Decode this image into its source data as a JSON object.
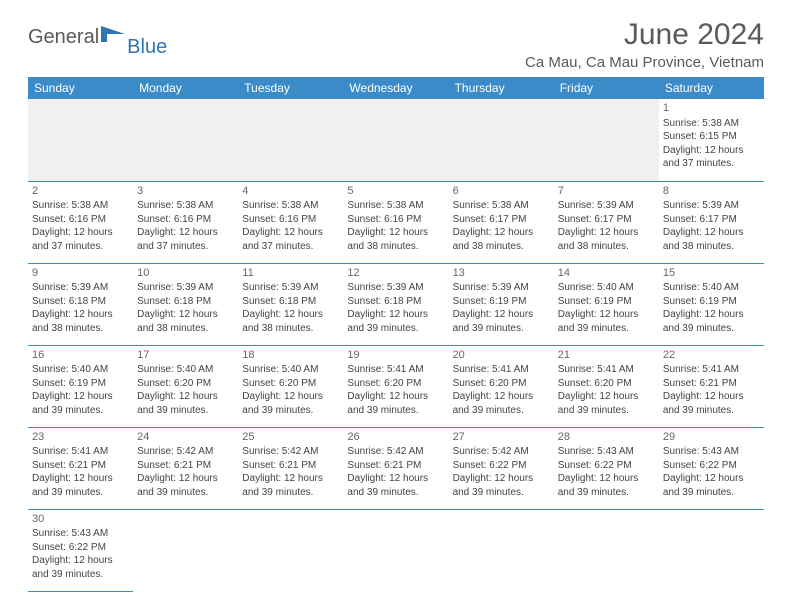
{
  "brand": {
    "general": "General",
    "blue": "Blue"
  },
  "title": "June 2024",
  "location": "Ca Mau, Ca Mau Province, Vietnam",
  "colors": {
    "header_bg": "#3b8bc9",
    "header_text": "#ffffff",
    "grid_line": "#3b8bc9",
    "blank_bg": "#f0f0f0",
    "text": "#444444",
    "title_text": "#5a5a5a",
    "logo_blue": "#2e75b6"
  },
  "weekdays": [
    "Sunday",
    "Monday",
    "Tuesday",
    "Wednesday",
    "Thursday",
    "Friday",
    "Saturday"
  ],
  "weeks": [
    [
      null,
      null,
      null,
      null,
      null,
      null,
      {
        "n": "1",
        "sr": "Sunrise: 5:38 AM",
        "ss": "Sunset: 6:15 PM",
        "d1": "Daylight: 12 hours",
        "d2": "and 37 minutes."
      }
    ],
    [
      {
        "n": "2",
        "sr": "Sunrise: 5:38 AM",
        "ss": "Sunset: 6:16 PM",
        "d1": "Daylight: 12 hours",
        "d2": "and 37 minutes."
      },
      {
        "n": "3",
        "sr": "Sunrise: 5:38 AM",
        "ss": "Sunset: 6:16 PM",
        "d1": "Daylight: 12 hours",
        "d2": "and 37 minutes."
      },
      {
        "n": "4",
        "sr": "Sunrise: 5:38 AM",
        "ss": "Sunset: 6:16 PM",
        "d1": "Daylight: 12 hours",
        "d2": "and 37 minutes."
      },
      {
        "n": "5",
        "sr": "Sunrise: 5:38 AM",
        "ss": "Sunset: 6:16 PM",
        "d1": "Daylight: 12 hours",
        "d2": "and 38 minutes."
      },
      {
        "n": "6",
        "sr": "Sunrise: 5:38 AM",
        "ss": "Sunset: 6:17 PM",
        "d1": "Daylight: 12 hours",
        "d2": "and 38 minutes."
      },
      {
        "n": "7",
        "sr": "Sunrise: 5:39 AM",
        "ss": "Sunset: 6:17 PM",
        "d1": "Daylight: 12 hours",
        "d2": "and 38 minutes."
      },
      {
        "n": "8",
        "sr": "Sunrise: 5:39 AM",
        "ss": "Sunset: 6:17 PM",
        "d1": "Daylight: 12 hours",
        "d2": "and 38 minutes."
      }
    ],
    [
      {
        "n": "9",
        "sr": "Sunrise: 5:39 AM",
        "ss": "Sunset: 6:18 PM",
        "d1": "Daylight: 12 hours",
        "d2": "and 38 minutes."
      },
      {
        "n": "10",
        "sr": "Sunrise: 5:39 AM",
        "ss": "Sunset: 6:18 PM",
        "d1": "Daylight: 12 hours",
        "d2": "and 38 minutes."
      },
      {
        "n": "11",
        "sr": "Sunrise: 5:39 AM",
        "ss": "Sunset: 6:18 PM",
        "d1": "Daylight: 12 hours",
        "d2": "and 38 minutes."
      },
      {
        "n": "12",
        "sr": "Sunrise: 5:39 AM",
        "ss": "Sunset: 6:18 PM",
        "d1": "Daylight: 12 hours",
        "d2": "and 39 minutes."
      },
      {
        "n": "13",
        "sr": "Sunrise: 5:39 AM",
        "ss": "Sunset: 6:19 PM",
        "d1": "Daylight: 12 hours",
        "d2": "and 39 minutes."
      },
      {
        "n": "14",
        "sr": "Sunrise: 5:40 AM",
        "ss": "Sunset: 6:19 PM",
        "d1": "Daylight: 12 hours",
        "d2": "and 39 minutes."
      },
      {
        "n": "15",
        "sr": "Sunrise: 5:40 AM",
        "ss": "Sunset: 6:19 PM",
        "d1": "Daylight: 12 hours",
        "d2": "and 39 minutes."
      }
    ],
    [
      {
        "n": "16",
        "sr": "Sunrise: 5:40 AM",
        "ss": "Sunset: 6:19 PM",
        "d1": "Daylight: 12 hours",
        "d2": "and 39 minutes."
      },
      {
        "n": "17",
        "sr": "Sunrise: 5:40 AM",
        "ss": "Sunset: 6:20 PM",
        "d1": "Daylight: 12 hours",
        "d2": "and 39 minutes."
      },
      {
        "n": "18",
        "sr": "Sunrise: 5:40 AM",
        "ss": "Sunset: 6:20 PM",
        "d1": "Daylight: 12 hours",
        "d2": "and 39 minutes."
      },
      {
        "n": "19",
        "sr": "Sunrise: 5:41 AM",
        "ss": "Sunset: 6:20 PM",
        "d1": "Daylight: 12 hours",
        "d2": "and 39 minutes."
      },
      {
        "n": "20",
        "sr": "Sunrise: 5:41 AM",
        "ss": "Sunset: 6:20 PM",
        "d1": "Daylight: 12 hours",
        "d2": "and 39 minutes."
      },
      {
        "n": "21",
        "sr": "Sunrise: 5:41 AM",
        "ss": "Sunset: 6:20 PM",
        "d1": "Daylight: 12 hours",
        "d2": "and 39 minutes."
      },
      {
        "n": "22",
        "sr": "Sunrise: 5:41 AM",
        "ss": "Sunset: 6:21 PM",
        "d1": "Daylight: 12 hours",
        "d2": "and 39 minutes."
      }
    ],
    [
      {
        "n": "23",
        "sr": "Sunrise: 5:41 AM",
        "ss": "Sunset: 6:21 PM",
        "d1": "Daylight: 12 hours",
        "d2": "and 39 minutes."
      },
      {
        "n": "24",
        "sr": "Sunrise: 5:42 AM",
        "ss": "Sunset: 6:21 PM",
        "d1": "Daylight: 12 hours",
        "d2": "and 39 minutes."
      },
      {
        "n": "25",
        "sr": "Sunrise: 5:42 AM",
        "ss": "Sunset: 6:21 PM",
        "d1": "Daylight: 12 hours",
        "d2": "and 39 minutes."
      },
      {
        "n": "26",
        "sr": "Sunrise: 5:42 AM",
        "ss": "Sunset: 6:21 PM",
        "d1": "Daylight: 12 hours",
        "d2": "and 39 minutes."
      },
      {
        "n": "27",
        "sr": "Sunrise: 5:42 AM",
        "ss": "Sunset: 6:22 PM",
        "d1": "Daylight: 12 hours",
        "d2": "and 39 minutes."
      },
      {
        "n": "28",
        "sr": "Sunrise: 5:43 AM",
        "ss": "Sunset: 6:22 PM",
        "d1": "Daylight: 12 hours",
        "d2": "and 39 minutes."
      },
      {
        "n": "29",
        "sr": "Sunrise: 5:43 AM",
        "ss": "Sunset: 6:22 PM",
        "d1": "Daylight: 12 hours",
        "d2": "and 39 minutes."
      }
    ],
    [
      {
        "n": "30",
        "sr": "Sunrise: 5:43 AM",
        "ss": "Sunset: 6:22 PM",
        "d1": "Daylight: 12 hours",
        "d2": "and 39 minutes."
      },
      null,
      null,
      null,
      null,
      null,
      null
    ]
  ]
}
